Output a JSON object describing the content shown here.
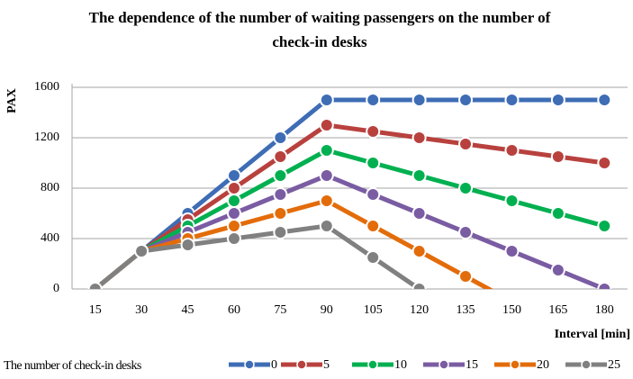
{
  "chart_data": {
    "type": "line",
    "title": "The dependence of the number of waiting  passengers on the number of check-in desks",
    "y_label": "PAX",
    "x_label": "Interval [min]",
    "legend_title": "The number of check-in desks",
    "categories": [
      "15",
      "30",
      "45",
      "60",
      "75",
      "90",
      "105",
      "120",
      "135",
      "150",
      "165",
      "180"
    ],
    "series": [
      {
        "name": "0",
        "color": "#3e6db5",
        "values": [
          0,
          300,
          600,
          900,
          1200,
          1500,
          1500,
          1500,
          1500,
          1500,
          1500,
          1500
        ]
      },
      {
        "name": "5",
        "color": "#b8413e",
        "values": [
          0,
          300,
          550,
          800,
          1050,
          1300,
          1250,
          1200,
          1150,
          1100,
          1050,
          1000
        ]
      },
      {
        "name": "10",
        "color": "#00b050",
        "values": [
          0,
          300,
          500,
          700,
          900,
          1100,
          1000,
          900,
          800,
          700,
          600,
          500
        ]
      },
      {
        "name": "15",
        "color": "#7a5ca3",
        "values": [
          0,
          300,
          450,
          600,
          750,
          900,
          750,
          600,
          450,
          300,
          150,
          0
        ]
      },
      {
        "name": "20",
        "color": "#e36c0a",
        "values": [
          0,
          300,
          400,
          500,
          600,
          700,
          500,
          300,
          100,
          -100,
          null,
          null
        ]
      },
      {
        "name": "25",
        "color": "#808080",
        "values": [
          0,
          300,
          350,
          400,
          450,
          500,
          250,
          0,
          null,
          null,
          null,
          null
        ]
      }
    ],
    "ylim": [
      0,
      1600
    ],
    "yticks": [
      0,
      400,
      800,
      1200,
      1600
    ],
    "grid": true
  }
}
